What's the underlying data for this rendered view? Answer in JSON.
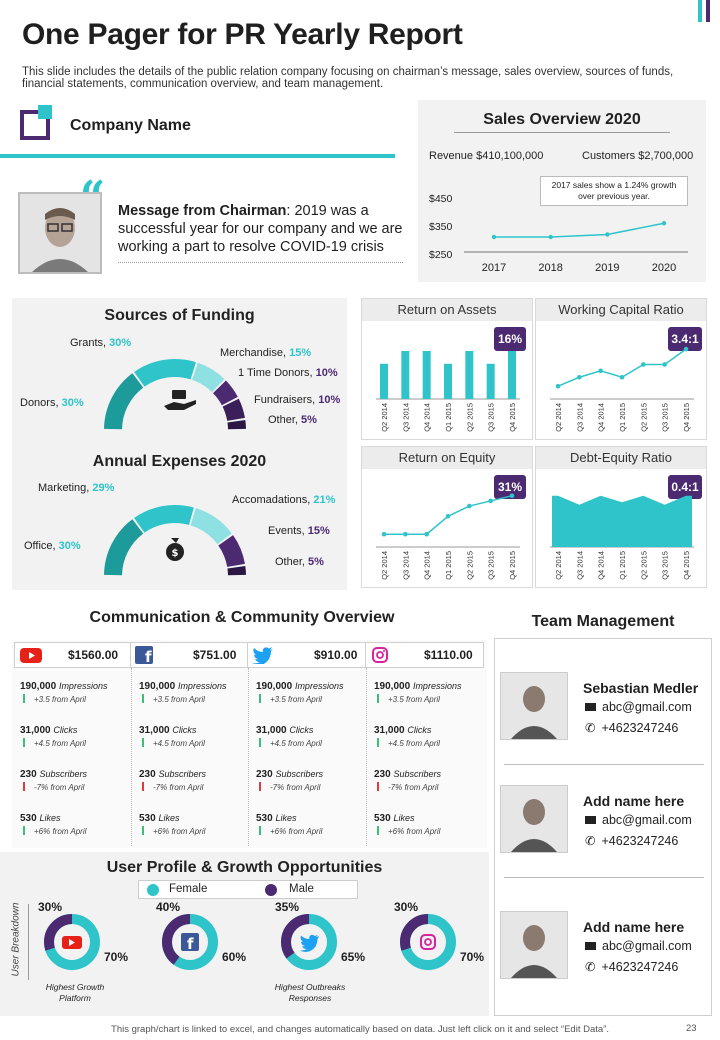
{
  "title_plain": "One Pager for ",
  "title_bold": "PR Yearly Report",
  "subtitle": "This slide includes the details of the public relation company focusing on chairman’s message, sales overview, sources of funds, financial statements, communication overview, and team management.",
  "company_name": "Company Name",
  "chairman": {
    "label": "Message from Chairman",
    "text": ": 2019 was a successful year for our company and we are working a part to resolve COVID-19 crisis"
  },
  "sales": {
    "title": "Sales Overview 2020",
    "revenue": "Revenue $410,100,000",
    "customers": "Customers $2,700,000",
    "note": "2017 sales show a 1.24% growth over previous year."
  },
  "funding": {
    "title": "Sources of Funding",
    "items": [
      {
        "name": "Grants, ",
        "pct": "30%"
      },
      {
        "name": "Merchandise, ",
        "pct": "15%"
      },
      {
        "name": "1 Time Donors, ",
        "pct": "10%"
      },
      {
        "name": "Fundraisers, ",
        "pct": "10%"
      },
      {
        "name": "Other, ",
        "pct": "5%"
      },
      {
        "name": "Donors, ",
        "pct": "30%"
      }
    ]
  },
  "expenses": {
    "title": "Annual Expenses 2020",
    "items": [
      {
        "name": "Marketing, ",
        "pct": "29%"
      },
      {
        "name": "Accomadations, ",
        "pct": "21%"
      },
      {
        "name": "Events, ",
        "pct": "15%"
      },
      {
        "name": "Other, ",
        "pct": "5%"
      },
      {
        "name": "Office, ",
        "pct": "30%"
      }
    ]
  },
  "ratios": {
    "roa": {
      "title": "Return on Assets",
      "value": "16%"
    },
    "wcr": {
      "title": "Working Capital Ratio",
      "value": "3.4:1"
    },
    "roe": {
      "title": "Return on Equity",
      "value": "31%"
    },
    "der": {
      "title": "Debt-Equity Ratio",
      "value": "0.4:1"
    }
  },
  "chart_data": [
    {
      "type": "line",
      "x": [
        "2017",
        "2018",
        "2019",
        "2020"
      ],
      "values": [
        310,
        310,
        320,
        365
      ],
      "ytick_labels": [
        "$450",
        "$350",
        "$250"
      ],
      "ylim": [
        250,
        450
      ],
      "grid": false
    },
    {
      "type": "bar",
      "title": "Return on Assets",
      "categories": [
        "Q2 2014",
        "Q3 2014",
        "Q4 2014",
        "Q1 2015",
        "Q2 2015",
        "Q3 2015",
        "Q4 2015"
      ],
      "values": [
        3.3,
        4.5,
        4.5,
        3.3,
        4.5,
        3.3,
        4.5
      ],
      "ylim": [
        0,
        6
      ]
    },
    {
      "type": "line",
      "title": "Working Capital Ratio",
      "categories": [
        "Q2 2014",
        "Q3 2014",
        "Q4 2014",
        "Q1 2015",
        "Q2 2015",
        "Q3 2015",
        "Q4 2015"
      ],
      "values": [
        1.0,
        1.7,
        2.2,
        1.7,
        2.7,
        2.7,
        3.9
      ],
      "ylim": [
        0,
        5
      ]
    },
    {
      "type": "line",
      "title": "Return on Equity",
      "categories": [
        "Q2 2014",
        "Q3 2014",
        "Q4 2014",
        "Q1 2015",
        "Q2 2015",
        "Q3 2015",
        "Q4 2015"
      ],
      "values": [
        1.0,
        1.0,
        1.0,
        2.4,
        3.2,
        3.6,
        4.0
      ],
      "ylim": [
        0,
        5
      ]
    },
    {
      "type": "area",
      "title": "Debt-Equity Ratio",
      "categories": [
        "Q2 2014",
        "Q3 2014",
        "Q4 2014",
        "Q1 2015",
        "Q2 2015",
        "Q3 2015",
        "Q4 2015"
      ],
      "values": [
        4.0,
        3.3,
        4.0,
        3.5,
        4.0,
        3.3,
        4.0
      ],
      "ylim": [
        0,
        5
      ]
    }
  ],
  "communication": {
    "title": "Communication & Community Overview",
    "channels": [
      {
        "icon": "youtube-icon",
        "amount": "$1560.00"
      },
      {
        "icon": "facebook-icon",
        "amount": "$751.00"
      },
      {
        "icon": "twitter-icon",
        "amount": "$910.00"
      },
      {
        "icon": "instagram-icon",
        "amount": "$1110.00"
      }
    ],
    "metrics": [
      {
        "value": "190,000",
        "label": "Impressions",
        "change": "+3.5 from April",
        "dir": "up"
      },
      {
        "value": "31,000",
        "label": "Clicks",
        "change": "+4.5 from April",
        "dir": "up"
      },
      {
        "value": "230",
        "label": "Subscribers",
        "change": "-7% from April",
        "dir": "down"
      },
      {
        "value": "530",
        "label": "Likes",
        "change": "+6% from April",
        "dir": "up"
      }
    ]
  },
  "team": {
    "title": "Team Management",
    "members": [
      {
        "name": "Sebastian Medler",
        "email": "abc@gmail.com",
        "phone": "+4623247246"
      },
      {
        "name": "Add name here",
        "email": "abc@gmail.com",
        "phone": "+4623247246"
      },
      {
        "name": "Add name here",
        "email": "abc@gmail.com",
        "phone": "+4623247246"
      }
    ]
  },
  "user_profile": {
    "title": "User Profile & Growth Opportunities",
    "legend_female": "Female",
    "legend_male": "Male",
    "side_label": "User Breakdown",
    "donuts": [
      {
        "male": "30%",
        "female": "70%",
        "male_frac": 0.3
      },
      {
        "male": "40%",
        "female": "60%",
        "male_frac": 0.4
      },
      {
        "male": "35%",
        "female": "65%",
        "male_frac": 0.35
      },
      {
        "male": "30%",
        "female": "70%",
        "male_frac": 0.3
      }
    ],
    "caption_1": "Highest Growth Platform",
    "caption_3": "Highest Outbreaks Responses"
  },
  "footer": "This graph/chart is linked to excel, and changes automatically based on data. Just left click on it and select “Edit Data”.",
  "page_number": "23",
  "colors": {
    "teal": "#2ec4c9",
    "purple": "#4b2a72",
    "dark_teal": "#1d9a9a"
  }
}
